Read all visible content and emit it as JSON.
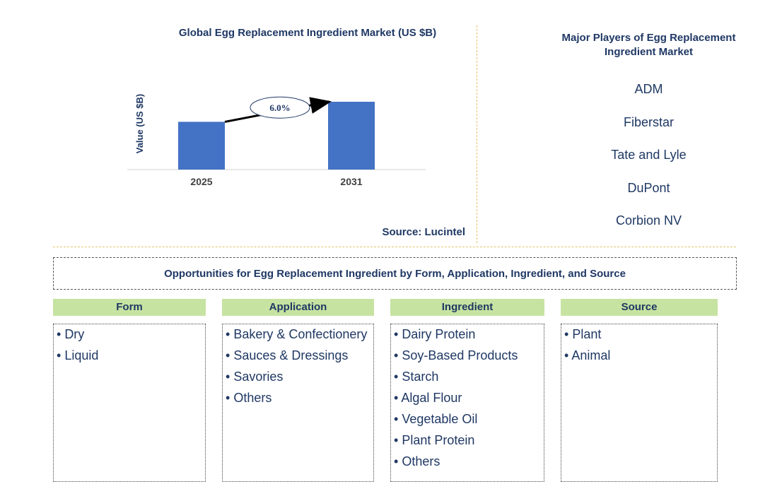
{
  "chart_data": {
    "type": "bar",
    "title": "Global Egg Replacement Ingredient Market (US $B)",
    "ylabel": "Value (US $B)",
    "xlabel": "",
    "categories": [
      "2025",
      "2031"
    ],
    "values": [
      1.0,
      1.42
    ],
    "ylim": [
      0,
      1.45
    ],
    "color": "#4472c4",
    "annotation": {
      "text": "6.0%",
      "type": "CAGR arrow from 2025 to 2031"
    },
    "source": "Source: Lucintel"
  },
  "players": {
    "title": "Major Players of Egg Replacement Ingredient Market",
    "items": [
      "ADM",
      "Fiberstar",
      "Tate and Lyle",
      "DuPont",
      "Corbion NV"
    ]
  },
  "opportunities": {
    "title": "Opportunities for Egg Replacement Ingredient by Form, Application, Ingredient, and Source",
    "header_color": "#c6e3a1",
    "columns": [
      {
        "name": "Form",
        "items": [
          "Dry",
          "Liquid"
        ]
      },
      {
        "name": "Application",
        "items": [
          "Bakery & Confectionery",
          "Sauces & Dressings",
          "Savories",
          "Others"
        ]
      },
      {
        "name": "Ingredient",
        "items": [
          "Dairy Protein",
          "Soy-Based Products",
          "Starch",
          "Algal Flour",
          "Vegetable Oil",
          "Plant Protein",
          "Others"
        ]
      },
      {
        "name": "Source",
        "items": [
          "Plant",
          "Animal"
        ]
      }
    ]
  }
}
